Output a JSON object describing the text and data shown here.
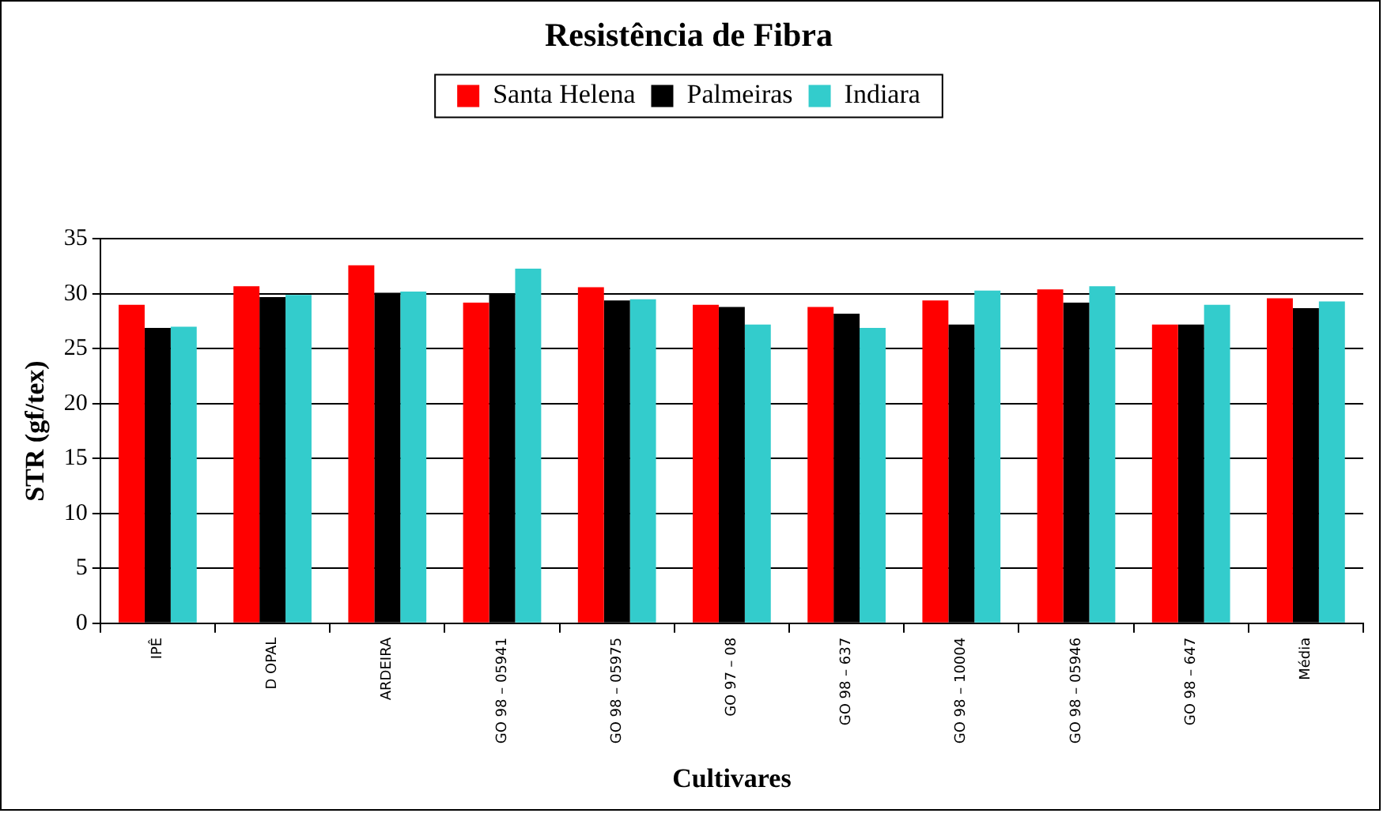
{
  "chart_data": {
    "type": "bar",
    "title": "Resistência de Fibra",
    "xlabel": "Cultivares",
    "ylabel": "STR (gf/tex)",
    "categories": [
      "IPÊ",
      "D OPAL",
      "ARDEIRA",
      "GO 98 – 05941",
      "GO 98 – 05975",
      "GO 97 – 08",
      "GO 98 – 637",
      "GO 98 – 10004",
      "GO 98 – 05946",
      "GO 98 – 647",
      "Média"
    ],
    "series": [
      {
        "name": "Santa Helena",
        "color": "#ff0000",
        "values": [
          29.0,
          30.7,
          32.6,
          29.2,
          30.6,
          29.0,
          28.8,
          29.4,
          30.4,
          27.2,
          29.6
        ]
      },
      {
        "name": "Palmeiras",
        "color": "#000000",
        "values": [
          26.9,
          29.7,
          30.1,
          30.0,
          29.4,
          28.8,
          28.2,
          27.2,
          29.2,
          27.2,
          28.7
        ]
      },
      {
        "name": "Indiara",
        "color": "#33cccc",
        "values": [
          27.0,
          29.9,
          30.2,
          32.3,
          29.5,
          27.2,
          26.9,
          30.3,
          30.7,
          29.0,
          29.3
        ]
      }
    ],
    "ylim": [
      0,
      35
    ],
    "yticks": [
      0,
      5,
      10,
      15,
      20,
      25,
      30,
      35
    ],
    "grid": "y",
    "legend": "top"
  }
}
